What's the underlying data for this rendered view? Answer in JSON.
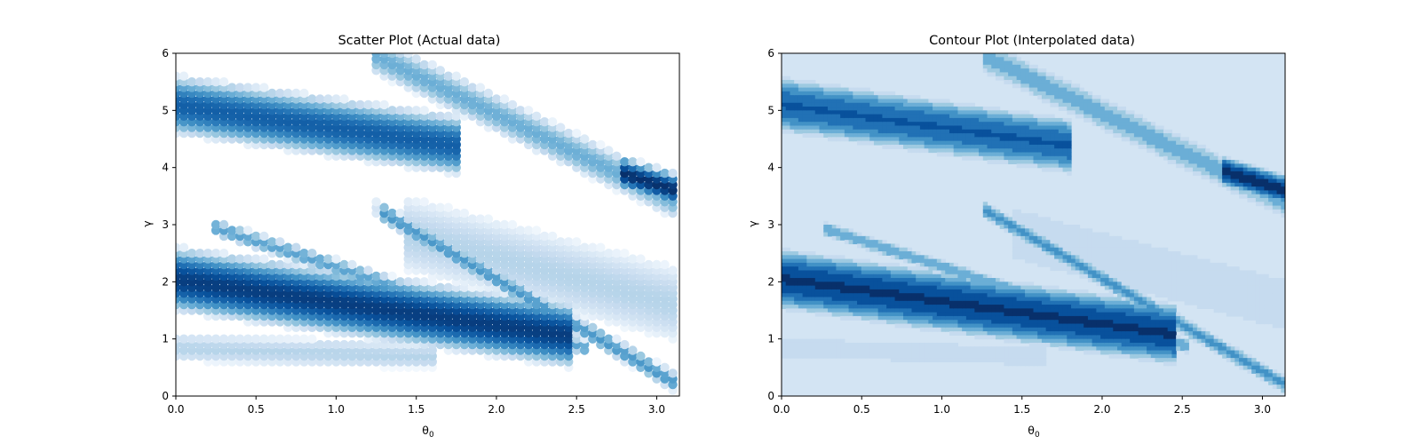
{
  "chart_data": [
    {
      "type": "scatter",
      "title": "Scatter Plot (Actual data)",
      "xlabel": "θ",
      "xlabel_sub": "0",
      "ylabel": "γ",
      "xlim": [
        0,
        3.1416
      ],
      "ylim": [
        0,
        6
      ],
      "xticks": [
        "0.0",
        "0.5",
        "1.0",
        "1.5",
        "2.0",
        "2.5",
        "3.0"
      ],
      "xtick_values": [
        0,
        0.5,
        1.0,
        1.5,
        2.0,
        2.5,
        3.0
      ],
      "yticks": [
        "0",
        "1",
        "2",
        "3",
        "4",
        "5",
        "6"
      ],
      "ytick_values": [
        0,
        1,
        2,
        3,
        4,
        5,
        6
      ],
      "colormap": "Blues",
      "grid": false,
      "sampling": {
        "x_step": 0.05,
        "y_step": 0.1
      },
      "bands": [
        {
          "x0": 0.0,
          "y0": 5.1,
          "x1": 1.75,
          "y1": 4.4,
          "width": 0.55,
          "peak": 0.82
        },
        {
          "x0": 0.0,
          "y0": 2.05,
          "x1": 2.4,
          "y1": 1.1,
          "width": 0.6,
          "peak": 0.95
        },
        {
          "x0": 0.3,
          "y0": 2.9,
          "x1": 2.5,
          "y1": 0.9,
          "width": 0.15,
          "peak": 0.55
        },
        {
          "x0": 1.3,
          "y0": 5.9,
          "x1": 3.14,
          "y1": 3.4,
          "width": 0.35,
          "peak": 0.5
        },
        {
          "x0": 1.3,
          "y0": 3.2,
          "x1": 3.14,
          "y1": 0.2,
          "width": 0.18,
          "peak": 0.6
        },
        {
          "x0": 2.8,
          "y0": 3.9,
          "x1": 3.14,
          "y1": 3.6,
          "width": 0.3,
          "peak": 1.0
        },
        {
          "x0": 0.0,
          "y0": 0.85,
          "x1": 1.6,
          "y1": 0.7,
          "width": 0.25,
          "peak": 0.3
        },
        {
          "x0": 1.5,
          "y0": 2.8,
          "x1": 3.14,
          "y1": 1.6,
          "width": 0.7,
          "peak": 0.3
        }
      ],
      "blank_regions": [
        {
          "y_min": 3.1,
          "y_max": 4.0,
          "x_max": 1.3
        },
        {
          "y_min": 0.0,
          "y_max": 0.55,
          "x_max": 2.2
        }
      ]
    },
    {
      "type": "heatmap",
      "title": "Contour Plot (Interpolated data)",
      "xlabel": "θ",
      "xlabel_sub": "0",
      "ylabel": "γ",
      "xlim": [
        0,
        3.1416
      ],
      "ylim": [
        0,
        6
      ],
      "xticks": [
        "0.0",
        "0.5",
        "1.0",
        "1.5",
        "2.0",
        "2.5",
        "3.0"
      ],
      "xtick_values": [
        0,
        0.5,
        1.0,
        1.5,
        2.0,
        2.5,
        3.0
      ],
      "yticks": [
        "0",
        "1",
        "2",
        "3",
        "4",
        "5",
        "6"
      ],
      "ytick_values": [
        0,
        1,
        2,
        3,
        4,
        5,
        6
      ],
      "colormap": "Blues",
      "levels": 8,
      "grid": false,
      "bands": [
        {
          "x0": 0.0,
          "y0": 5.1,
          "x1": 1.75,
          "y1": 4.4,
          "width": 0.55,
          "peak": 0.82
        },
        {
          "x0": 0.0,
          "y0": 2.05,
          "x1": 2.4,
          "y1": 1.1,
          "width": 0.6,
          "peak": 0.95
        },
        {
          "x0": 0.3,
          "y0": 2.9,
          "x1": 2.5,
          "y1": 0.9,
          "width": 0.15,
          "peak": 0.55
        },
        {
          "x0": 1.3,
          "y0": 5.9,
          "x1": 3.14,
          "y1": 3.4,
          "width": 0.35,
          "peak": 0.5
        },
        {
          "x0": 1.3,
          "y0": 3.2,
          "x1": 3.14,
          "y1": 0.2,
          "width": 0.18,
          "peak": 0.6
        },
        {
          "x0": 2.8,
          "y0": 3.9,
          "x1": 3.14,
          "y1": 3.6,
          "width": 0.3,
          "peak": 1.0
        },
        {
          "x0": 0.0,
          "y0": 0.85,
          "x1": 1.6,
          "y1": 0.7,
          "width": 0.25,
          "peak": 0.3
        },
        {
          "x0": 1.5,
          "y0": 2.8,
          "x1": 3.14,
          "y1": 1.6,
          "width": 0.7,
          "peak": 0.3
        }
      ],
      "background_level": 0.18
    }
  ]
}
